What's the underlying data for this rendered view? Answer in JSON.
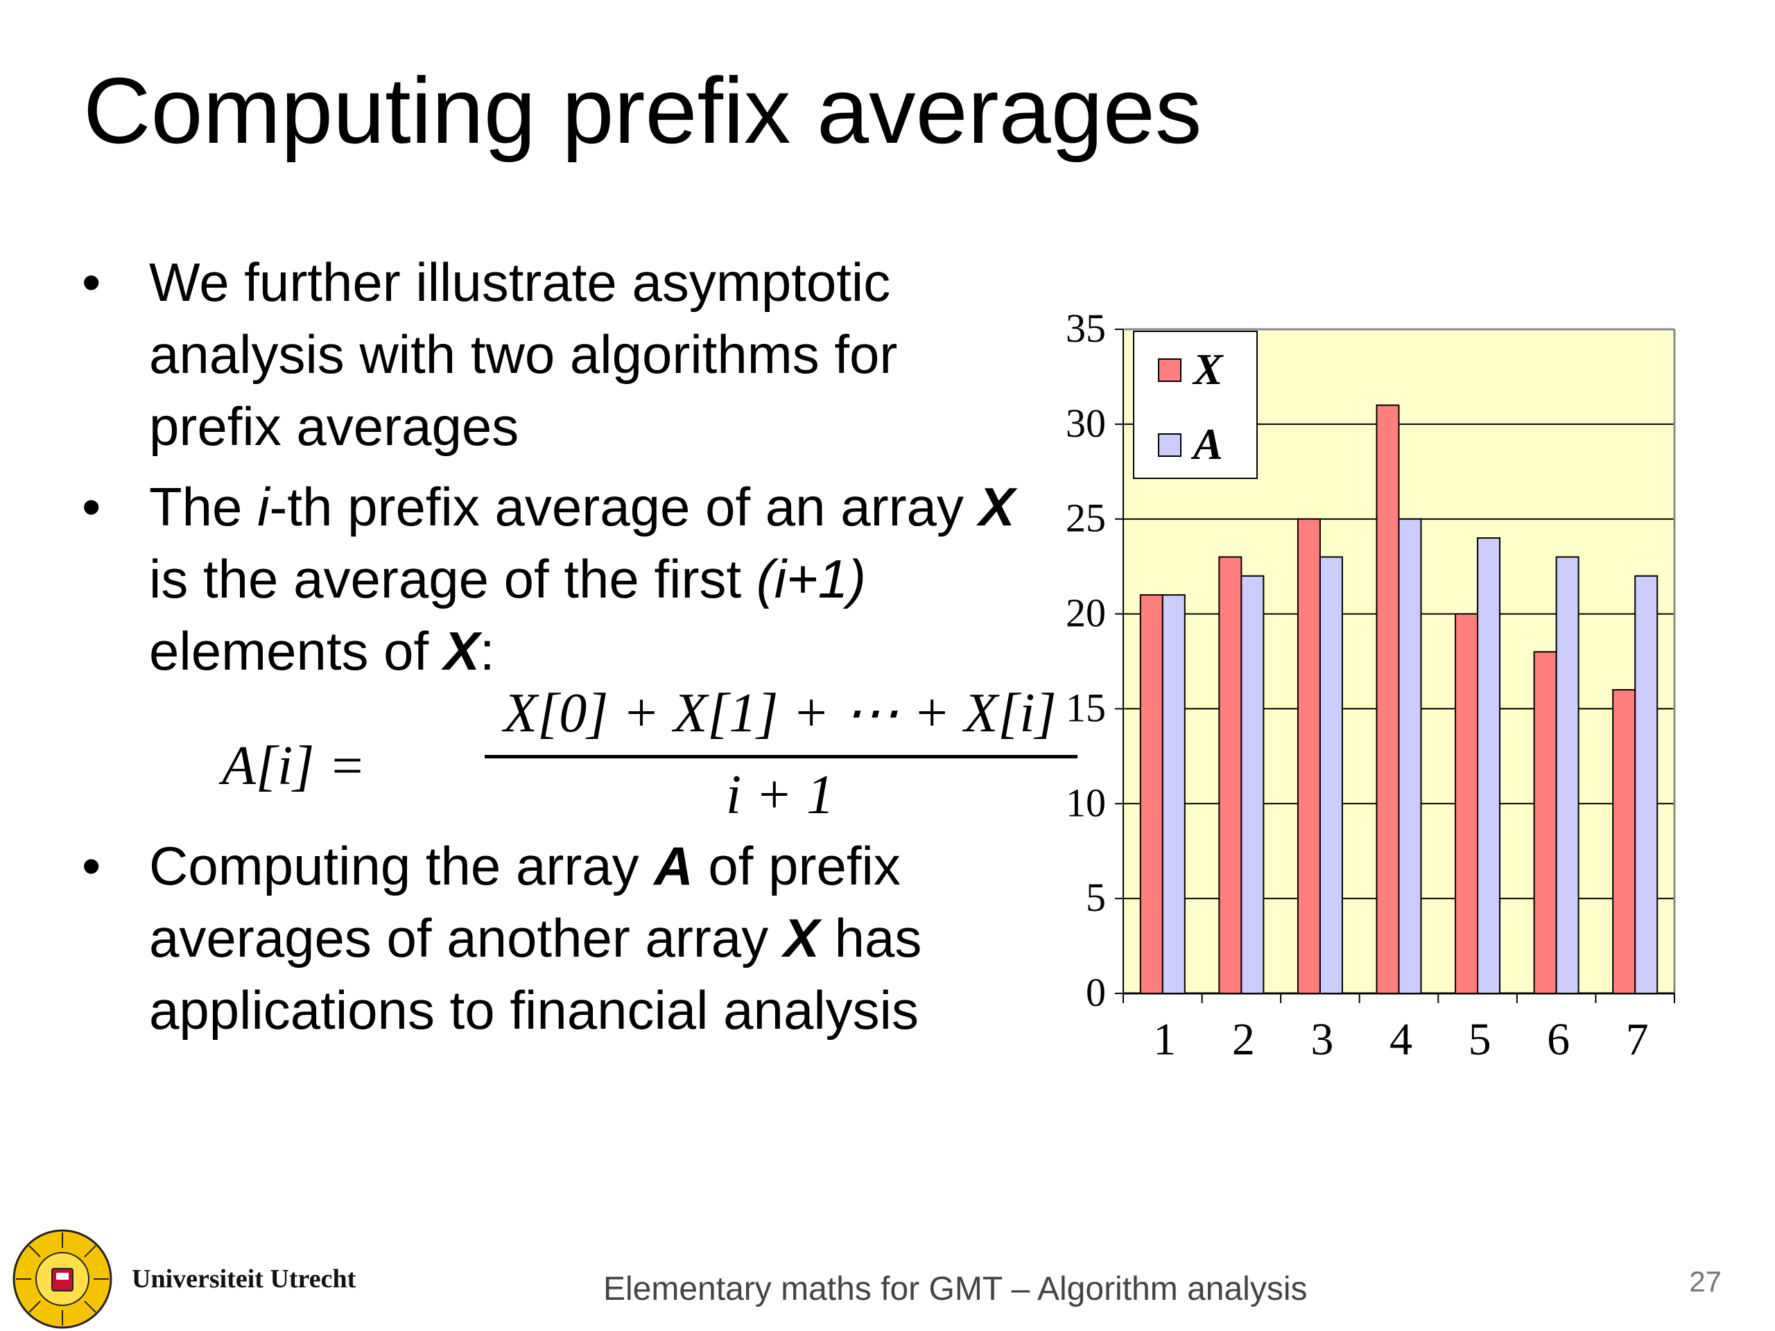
{
  "slide": {
    "title": "Computing prefix averages",
    "bullets": [
      {
        "text": "We further illustrate asymptotic analysis with two algorithms for prefix averages"
      },
      {
        "t1": "The ",
        "i": "i",
        "t2": "-th prefix average of an array ",
        "X": "X",
        "t3": " is the average of the first ",
        "ip1": "(i+1)",
        "t4": " elements of ",
        "X2": "X",
        "t5": ":"
      },
      {
        "t1": "Computing the array ",
        "A": "A",
        "t2": " of prefix averages of another array ",
        "X": "X",
        "t3": " has applications to financial analysis"
      }
    ],
    "bullet_glyph": "•",
    "formula": {
      "lhs": "A[i] =",
      "numerator": "X[0] + X[1] + ⋯ + X[i]",
      "denominator": "i + 1"
    },
    "footer": {
      "university": "Universiteit Utrecht",
      "course": "Elementary maths for GMT – Algorithm analysis",
      "page": "27"
    },
    "logo_icon": "university-seal-icon"
  },
  "chart_data": {
    "type": "bar",
    "categories": [
      "1",
      "2",
      "3",
      "4",
      "5",
      "6",
      "7"
    ],
    "series": [
      {
        "name": "X",
        "values": [
          21,
          23,
          25,
          31,
          20,
          18,
          16
        ],
        "color": "#ff7f7f"
      },
      {
        "name": "A",
        "values": [
          21,
          22,
          23,
          25,
          24,
          23,
          22
        ],
        "color": "#ccccff"
      }
    ],
    "y_ticks": [
      "0",
      "5",
      "10",
      "15",
      "20",
      "25",
      "30",
      "35"
    ],
    "ylim": [
      0,
      35
    ],
    "grid": "horizontal",
    "legend": "top-left",
    "plot_background": "#ffffcc",
    "bar_border": "#000000"
  }
}
